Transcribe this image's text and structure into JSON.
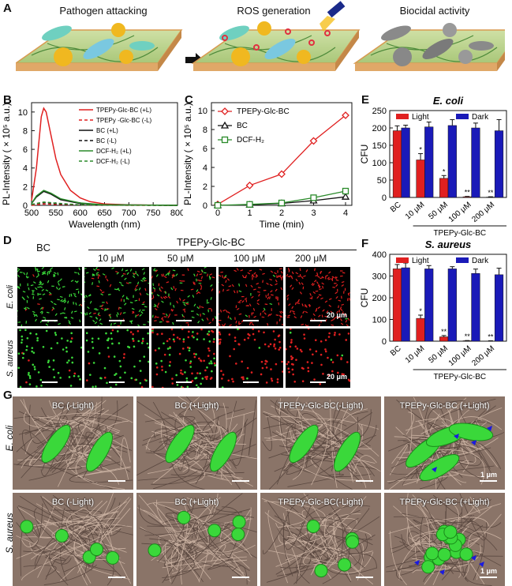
{
  "panel_labels": {
    "A": "A",
    "B": "B",
    "C": "C",
    "D": "D",
    "E": "E",
    "F": "F",
    "G": "G"
  },
  "panelA": {
    "steps": [
      "Pathogen attacking",
      "ROS generation",
      "Biocidal activity"
    ]
  },
  "panelB": {
    "ylabel": "PL-Intensity ( × 10⁵ a.u.)",
    "xlabel": "Wavelength (nm)",
    "xticks": [
      "500",
      "550",
      "600",
      "650",
      "700",
      "750",
      "800"
    ],
    "yticks": [
      "0",
      "2",
      "4",
      "6",
      "8",
      "10"
    ],
    "legend": [
      "TPEPy-Glc-BC (+L)",
      "TPEPy -Glc-BC (-L)",
      "BC (+L)",
      "BC (-L)",
      "DCF-H₂ (+L)",
      "DCF-H₂ (-L)"
    ]
  },
  "panelC": {
    "ylabel": "PL-Intensity ( × 10⁵ a.u.)",
    "xlabel": "Time (min)",
    "xticks": [
      "0",
      "1",
      "2",
      "3",
      "4"
    ],
    "yticks": [
      "0",
      "2",
      "4",
      "6",
      "8",
      "10"
    ],
    "legend": [
      "TPEPy-Glc-BC",
      "BC",
      "DCF-H₂"
    ]
  },
  "panelD": {
    "col0": "BC",
    "group": "TPEPy-Glc-BC",
    "cols": [
      "10 μM",
      "50 μM",
      "100 μM",
      "200 μM"
    ],
    "rows": [
      "E. coli",
      "S. aureus"
    ],
    "scale": "20 μm"
  },
  "panelE": {
    "title": "E. coli",
    "ylabel": "CFU",
    "group": "TPEPy-Glc-BC",
    "legend": [
      "Light",
      "Dark"
    ],
    "yticks": [
      "0",
      "50",
      "100",
      "150",
      "200",
      "250"
    ],
    "xticks": [
      "BC",
      "10 μM",
      "50 μM",
      "100 μM",
      "200 μM"
    ],
    "sig": [
      "*",
      "*",
      "**",
      "**"
    ]
  },
  "panelF": {
    "title": "S. aureus",
    "ylabel": "CFU",
    "group": "TPEPy-Glc-BC",
    "legend": [
      "Light",
      "Dark"
    ],
    "yticks": [
      "0",
      "100",
      "200",
      "300",
      "400"
    ],
    "xticks": [
      "BC",
      "10 μM",
      "50 μM",
      "100 μM",
      "200 μM"
    ],
    "sig": [
      "*",
      "**",
      "**",
      "**"
    ]
  },
  "panelG": {
    "labels": [
      "BC (-Light)",
      "BC (+Light)",
      "TPEPy-Glc-BC(-Light)",
      "TPEPy-Glc-BC (+Light)"
    ],
    "rows": [
      "E. coli",
      "S. aureus"
    ],
    "scale": "1 μm"
  },
  "chart_data": [
    {
      "type": "line",
      "panel": "B",
      "xlabel": "Wavelength (nm)",
      "ylabel": "PL-Intensity ( × 10⁵ a.u.)",
      "xlim": [
        500,
        800
      ],
      "ylim": [
        0,
        11
      ],
      "series": [
        {
          "name": "TPEPy-Glc-BC (+L)",
          "color": "#e02020",
          "style": "solid",
          "x": [
            500,
            510,
            520,
            525,
            530,
            540,
            550,
            560,
            580,
            600,
            620,
            650,
            700,
            800
          ],
          "y": [
            0.5,
            4,
            9.5,
            10.4,
            10,
            7.5,
            5,
            3.3,
            1.6,
            0.8,
            0.4,
            0.15,
            0.05,
            0
          ]
        },
        {
          "name": "TPEPy -Glc-BC (-L)",
          "color": "#e02020",
          "style": "dash",
          "x": [
            500,
            525,
            550,
            600,
            700,
            800
          ],
          "y": [
            0,
            0.15,
            0.1,
            0.05,
            0,
            0
          ]
        },
        {
          "name": "BC (+L)",
          "color": "#111111",
          "style": "solid",
          "x": [
            500,
            510,
            525,
            540,
            560,
            600,
            650,
            800
          ],
          "y": [
            0.2,
            0.9,
            1.5,
            1.2,
            0.6,
            0.2,
            0.05,
            0
          ]
        },
        {
          "name": "BC (-L)",
          "color": "#111111",
          "style": "dash",
          "x": [
            500,
            525,
            560,
            600,
            800
          ],
          "y": [
            0.1,
            0.3,
            0.15,
            0.05,
            0
          ]
        },
        {
          "name": "DCF-H₂ (+L)",
          "color": "#2a8a2a",
          "style": "solid",
          "x": [
            500,
            510,
            525,
            540,
            560,
            600,
            650,
            800
          ],
          "y": [
            0.2,
            1,
            1.6,
            1.3,
            0.7,
            0.25,
            0.05,
            0
          ]
        },
        {
          "name": "DCF-H₂ (-L)",
          "color": "#2a8a2a",
          "style": "dash",
          "x": [
            500,
            525,
            560,
            600,
            800
          ],
          "y": [
            0.1,
            0.35,
            0.2,
            0.05,
            0
          ]
        }
      ]
    },
    {
      "type": "line",
      "panel": "C",
      "xlabel": "Time (min)",
      "ylabel": "PL-Intensity ( × 10⁵ a.u.)",
      "xlim": [
        0,
        4
      ],
      "ylim": [
        0,
        10
      ],
      "series": [
        {
          "name": "TPEPy-Glc-BC",
          "color": "#e02020",
          "marker": "diamond",
          "x": [
            0,
            1,
            2,
            3,
            4
          ],
          "y": [
            0.1,
            2.1,
            3.3,
            6.8,
            9.5
          ]
        },
        {
          "name": "BC",
          "color": "#111111",
          "marker": "triangle",
          "x": [
            0,
            1,
            2,
            3,
            4
          ],
          "y": [
            0,
            0.05,
            0.2,
            0.5,
            0.9
          ]
        },
        {
          "name": "DCF-H₂",
          "color": "#2a8a2a",
          "marker": "square",
          "x": [
            0,
            1,
            2,
            3,
            4
          ],
          "y": [
            0,
            0.1,
            0.25,
            0.8,
            1.5
          ]
        }
      ]
    },
    {
      "type": "bar",
      "panel": "E",
      "title": "E. coli",
      "ylabel": "CFU",
      "ylim": [
        0,
        250
      ],
      "categories": [
        "BC",
        "10 μM",
        "50 μM",
        "100 μM",
        "200 μM"
      ],
      "series": [
        {
          "name": "Light",
          "color": "#e02020",
          "values": [
            192,
            108,
            55,
            2,
            1
          ],
          "err": [
            14,
            18,
            8,
            1,
            1
          ]
        },
        {
          "name": "Dark",
          "color": "#1a1ab8",
          "values": [
            200,
            203,
            207,
            200,
            192
          ],
          "err": [
            8,
            14,
            17,
            14,
            32
          ]
        }
      ]
    },
    {
      "type": "bar",
      "panel": "F",
      "title": "S. aureus",
      "ylabel": "CFU",
      "ylim": [
        0,
        400
      ],
      "categories": [
        "BC",
        "10 μM",
        "50 μM",
        "100 μM",
        "200 μM"
      ],
      "series": [
        {
          "name": "Light",
          "color": "#e02020",
          "values": [
            333,
            105,
            20,
            2,
            1
          ],
          "err": [
            20,
            15,
            6,
            1,
            1
          ]
        },
        {
          "name": "Dark",
          "color": "#1a1ab8",
          "values": [
            338,
            333,
            333,
            312,
            306
          ],
          "err": [
            22,
            15,
            10,
            20,
            30
          ]
        }
      ]
    }
  ]
}
